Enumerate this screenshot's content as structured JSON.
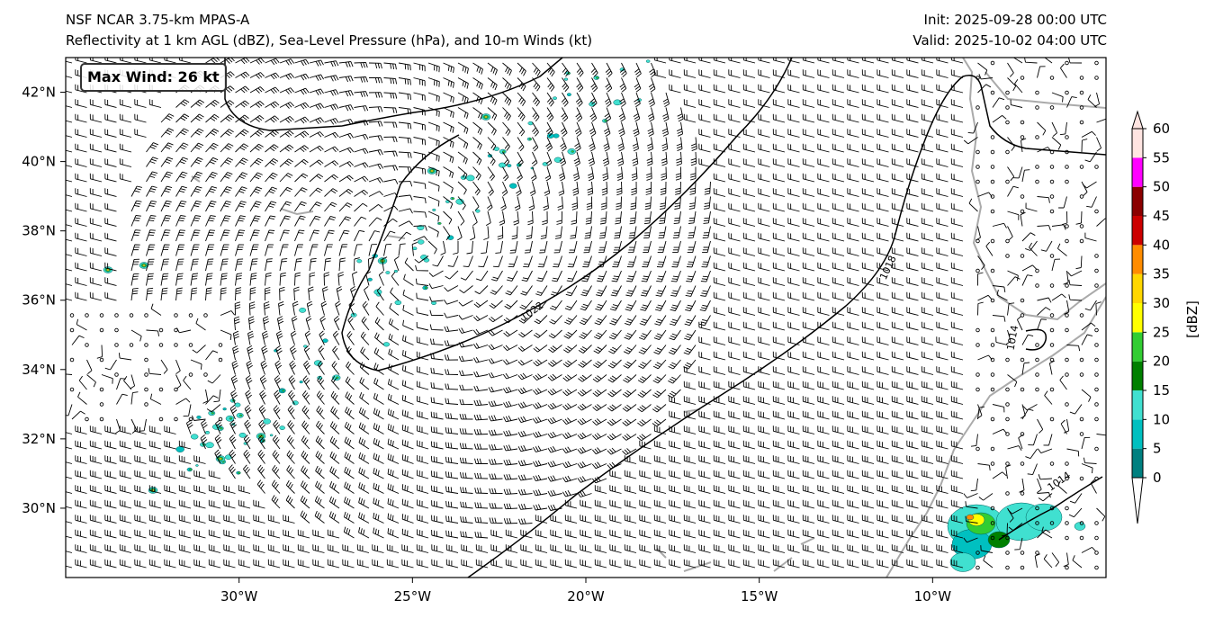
{
  "header": {
    "title_left_line1": "NSF NCAR 3.75-km MPAS-A",
    "title_left_line2": "Reflectivity at 1 km AGL (dBZ), Sea-Level Pressure (hPa), and 10-m Winds (kt)",
    "title_right_line1": "Init: 2025-09-28 00:00 UTC",
    "title_right_line2": "Valid: 2025-10-02 04:00 UTC"
  },
  "annotation": {
    "max_wind": "Max Wind: 26 kt"
  },
  "map": {
    "lon_range": [
      -35,
      -5
    ],
    "lat_range": [
      28,
      43
    ],
    "lon_ticks": [
      {
        "value": -30,
        "label": "30°W"
      },
      {
        "value": -25,
        "label": "25°W"
      },
      {
        "value": -20,
        "label": "20°W"
      },
      {
        "value": -15,
        "label": "15°W"
      },
      {
        "value": -10,
        "label": "10°W"
      }
    ],
    "lat_ticks": [
      {
        "value": 30,
        "label": "30°N"
      },
      {
        "value": 32,
        "label": "32°N"
      },
      {
        "value": 34,
        "label": "34°N"
      },
      {
        "value": 36,
        "label": "36°N"
      },
      {
        "value": 38,
        "label": "38°N"
      },
      {
        "value": 40,
        "label": "40°N"
      },
      {
        "value": 42,
        "label": "42°N"
      }
    ],
    "contour_labels": [
      {
        "text": "1022",
        "lon": -21.5,
        "lat": 35.6,
        "angle": -35
      },
      {
        "text": "1018",
        "lon": -11.2,
        "lat": 36.9,
        "angle": -65
      },
      {
        "text": "1014",
        "lon": -7.6,
        "lat": 34.9,
        "angle": -80
      },
      {
        "text": "1014",
        "lon": -6.3,
        "lat": 30.7,
        "angle": -35
      }
    ]
  },
  "colorbar": {
    "label": "[dBZ]",
    "tick_labels": [
      "0",
      "5",
      "10",
      "15",
      "20",
      "25",
      "30",
      "35",
      "40",
      "45",
      "50",
      "55",
      "60"
    ],
    "colors": [
      "#008080",
      "#00c0c0",
      "#40e0d0",
      "#008000",
      "#32cd32",
      "#ffff00",
      "#ffd700",
      "#ff8c00",
      "#cc0000",
      "#8b0000",
      "#ff00ff",
      "#ffe4e1"
    ]
  }
}
